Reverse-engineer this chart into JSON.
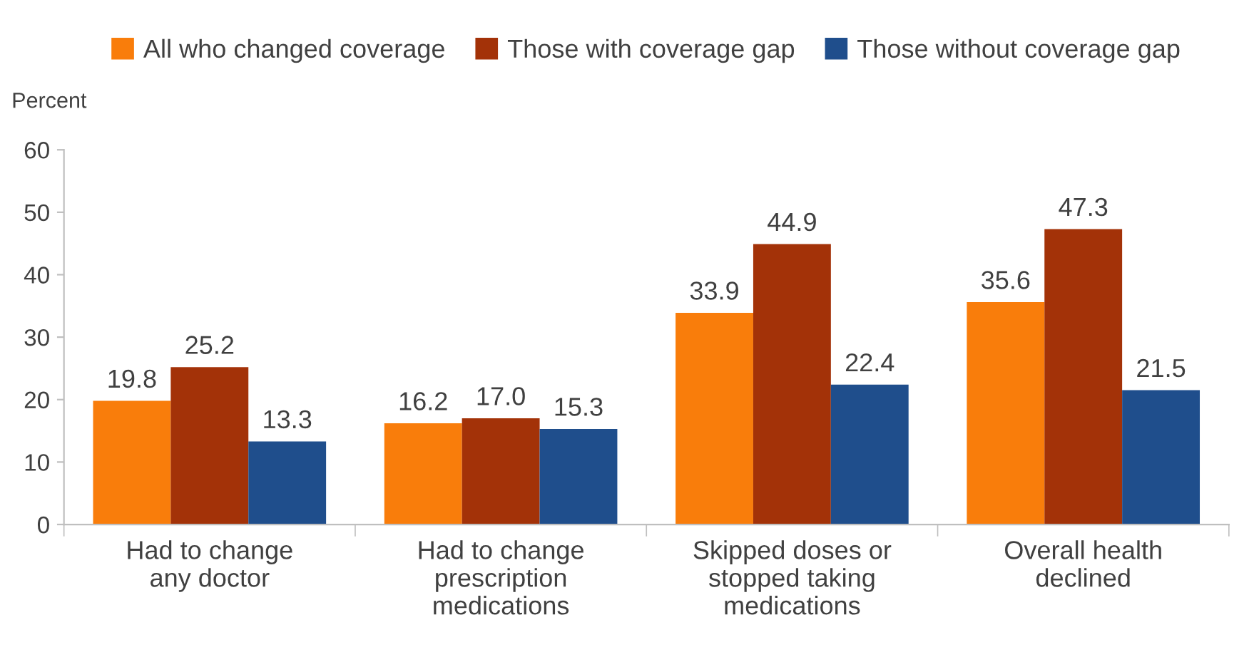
{
  "chart_data": {
    "type": "bar",
    "ylabel": "Percent",
    "categories": [
      "Had to change\nany doctor",
      "Had to change\nprescription\nmedications",
      "Skipped doses or\nstopped taking\nmedications",
      "Overall health\ndeclined"
    ],
    "series": [
      {
        "name": "All who changed coverage",
        "color": "#f97d0b",
        "values": [
          19.8,
          16.2,
          33.9,
          35.6
        ],
        "value_labels": [
          "19.8",
          "16.2",
          "33.9",
          "35.6"
        ]
      },
      {
        "name": "Those with coverage gap",
        "color": "#a33208",
        "values": [
          25.2,
          17.0,
          44.9,
          47.3
        ],
        "value_labels": [
          "25.2",
          "17.0",
          "44.9",
          "47.3"
        ]
      },
      {
        "name": "Those without coverage gap",
        "color": "#1f4e8c",
        "values": [
          13.3,
          15.3,
          22.4,
          21.5
        ],
        "value_labels": [
          "13.3",
          "15.3",
          "22.4",
          "21.5"
        ]
      }
    ],
    "ylim": [
      0,
      60
    ],
    "yticks": [
      0,
      10,
      20,
      30,
      40,
      50,
      60
    ],
    "grid": false,
    "legend": "top"
  }
}
